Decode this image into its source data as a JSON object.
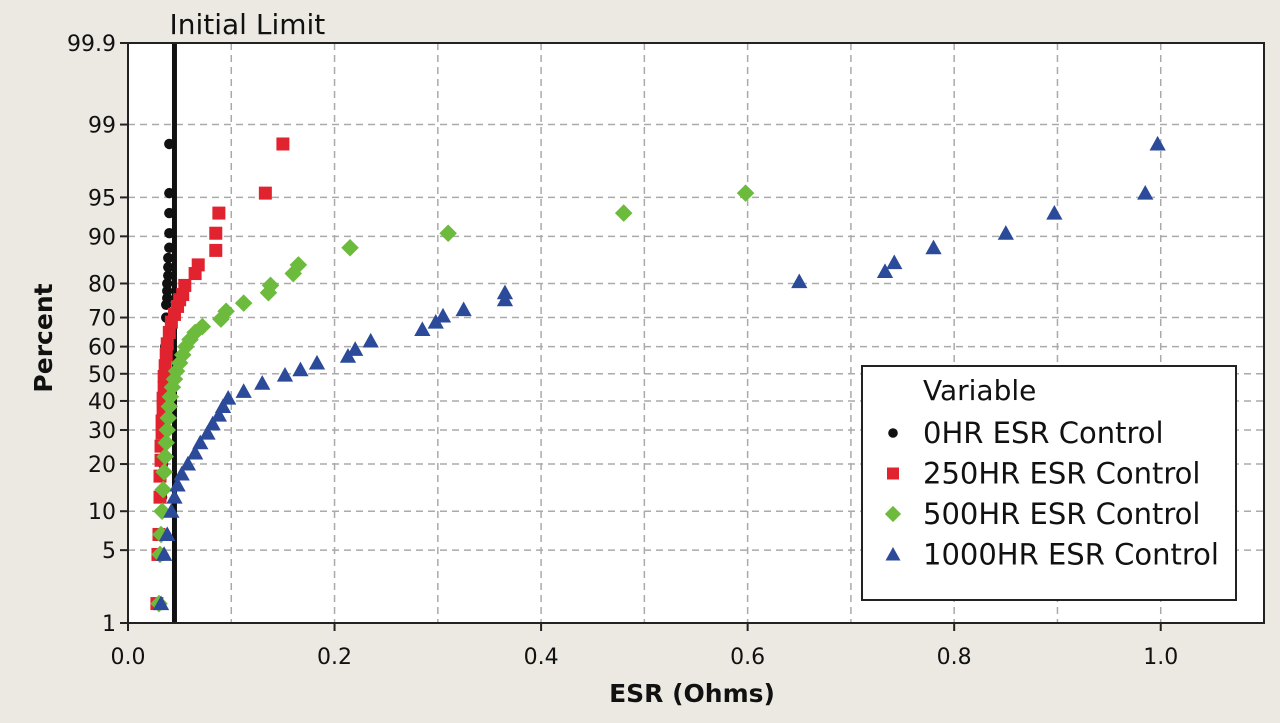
{
  "chart_data": {
    "type": "scatter",
    "title": "",
    "xlabel": "ESR (Ohms)",
    "ylabel": "Percent",
    "x_scale": "linear",
    "y_scale": "normal-probability",
    "xlim": [
      0.0,
      1.1
    ],
    "ylim": [
      1,
      99.9
    ],
    "x_ticks": [
      0.0,
      0.2,
      0.4,
      0.6,
      0.8,
      1.0
    ],
    "x_tick_labels": [
      "0.0",
      "0.2",
      "0.4",
      "0.6",
      "0.8",
      "1.0"
    ],
    "x_minor_gridlines": [
      0.1,
      0.3,
      0.5,
      0.7,
      0.9
    ],
    "y_ticks": [
      1,
      5,
      10,
      20,
      30,
      40,
      50,
      60,
      70,
      80,
      90,
      95,
      99,
      99.9
    ],
    "y_tick_labels": [
      "1",
      "5",
      "10",
      "20",
      "30",
      "40",
      "50",
      "60",
      "70",
      "80",
      "90",
      "95",
      "99",
      "99.9"
    ],
    "grid": true,
    "reference_line": {
      "label": "Initial Limit",
      "x": 0.045,
      "color": "#111111"
    },
    "legend": {
      "title": "Variable",
      "position": "bottom-right"
    },
    "series": [
      {
        "name": "0HR ESR Control",
        "marker": "circle",
        "color": "#111111",
        "points": [
          [
            0.03,
            1.6
          ],
          [
            0.031,
            4.6
          ],
          [
            0.032,
            6.7
          ],
          [
            0.033,
            12.5
          ],
          [
            0.034,
            20
          ],
          [
            0.035,
            30
          ],
          [
            0.035,
            40
          ],
          [
            0.036,
            50
          ],
          [
            0.036,
            60
          ],
          [
            0.037,
            70
          ],
          [
            0.037,
            74
          ],
          [
            0.038,
            76
          ],
          [
            0.038,
            78
          ],
          [
            0.038,
            80
          ],
          [
            0.039,
            82
          ],
          [
            0.039,
            84
          ],
          [
            0.039,
            86
          ],
          [
            0.04,
            88
          ],
          [
            0.04,
            90.5
          ],
          [
            0.04,
            93.3
          ],
          [
            0.04,
            95.4
          ],
          [
            0.04,
            98.4
          ]
        ]
      },
      {
        "name": "250HR ESR Control",
        "marker": "square",
        "color": "#e0232e",
        "points": [
          [
            0.028,
            1.6
          ],
          [
            0.029,
            4.6
          ],
          [
            0.03,
            6.7
          ],
          [
            0.031,
            12.5
          ],
          [
            0.031,
            17
          ],
          [
            0.032,
            21
          ],
          [
            0.032,
            25
          ],
          [
            0.033,
            29
          ],
          [
            0.033,
            33
          ],
          [
            0.034,
            37
          ],
          [
            0.034,
            41
          ],
          [
            0.035,
            45
          ],
          [
            0.035,
            49
          ],
          [
            0.036,
            53
          ],
          [
            0.037,
            57
          ],
          [
            0.038,
            61
          ],
          [
            0.04,
            65
          ],
          [
            0.042,
            68.5
          ],
          [
            0.045,
            71
          ],
          [
            0.048,
            73.5
          ],
          [
            0.05,
            75.5
          ],
          [
            0.053,
            77
          ],
          [
            0.055,
            79.5
          ],
          [
            0.065,
            82.5
          ],
          [
            0.068,
            84.5
          ],
          [
            0.085,
            87.5
          ],
          [
            0.085,
            90.5
          ],
          [
            0.088,
            93.3
          ],
          [
            0.133,
            95.4
          ],
          [
            0.15,
            98.4
          ]
        ]
      },
      {
        "name": "500HR ESR Control",
        "marker": "diamond",
        "color": "#6cbb3c",
        "points": [
          [
            0.03,
            1.6
          ],
          [
            0.031,
            4.6
          ],
          [
            0.032,
            6.7
          ],
          [
            0.033,
            10
          ],
          [
            0.034,
            14
          ],
          [
            0.035,
            18
          ],
          [
            0.036,
            22
          ],
          [
            0.037,
            26
          ],
          [
            0.038,
            30
          ],
          [
            0.039,
            34
          ],
          [
            0.04,
            38
          ],
          [
            0.041,
            41.5
          ],
          [
            0.043,
            45
          ],
          [
            0.045,
            48
          ],
          [
            0.047,
            51
          ],
          [
            0.05,
            54
          ],
          [
            0.053,
            57
          ],
          [
            0.056,
            60
          ],
          [
            0.06,
            62.5
          ],
          [
            0.065,
            65
          ],
          [
            0.072,
            67
          ],
          [
            0.09,
            69.5
          ],
          [
            0.095,
            72
          ],
          [
            0.112,
            74.5
          ],
          [
            0.136,
            77.5
          ],
          [
            0.138,
            79.5
          ],
          [
            0.16,
            82.5
          ],
          [
            0.165,
            84.5
          ],
          [
            0.215,
            88
          ],
          [
            0.31,
            90.5
          ],
          [
            0.48,
            93.3
          ],
          [
            0.598,
            95.4
          ]
        ]
      },
      {
        "name": "1000HR ESR Control",
        "marker": "triangle",
        "color": "#2c4a9a",
        "points": [
          [
            0.032,
            1.6
          ],
          [
            0.035,
            4.6
          ],
          [
            0.038,
            6.7
          ],
          [
            0.042,
            10
          ],
          [
            0.045,
            12.5
          ],
          [
            0.048,
            15
          ],
          [
            0.052,
            17.5
          ],
          [
            0.058,
            20
          ],
          [
            0.065,
            23
          ],
          [
            0.07,
            26
          ],
          [
            0.077,
            29
          ],
          [
            0.082,
            32
          ],
          [
            0.088,
            35
          ],
          [
            0.092,
            38
          ],
          [
            0.097,
            41
          ],
          [
            0.112,
            43.5
          ],
          [
            0.13,
            46.5
          ],
          [
            0.152,
            49.5
          ],
          [
            0.167,
            51.5
          ],
          [
            0.183,
            54
          ],
          [
            0.213,
            56.5
          ],
          [
            0.22,
            59
          ],
          [
            0.235,
            62
          ],
          [
            0.285,
            66
          ],
          [
            0.298,
            68.5
          ],
          [
            0.305,
            70.5
          ],
          [
            0.325,
            72.5
          ],
          [
            0.365,
            75.5
          ],
          [
            0.365,
            77.5
          ],
          [
            0.65,
            80.5
          ],
          [
            0.733,
            83
          ],
          [
            0.742,
            85
          ],
          [
            0.78,
            88
          ],
          [
            0.85,
            90.5
          ],
          [
            0.897,
            93.3
          ],
          [
            0.985,
            95.4
          ],
          [
            0.997,
            98.4
          ]
        ]
      }
    ]
  }
}
